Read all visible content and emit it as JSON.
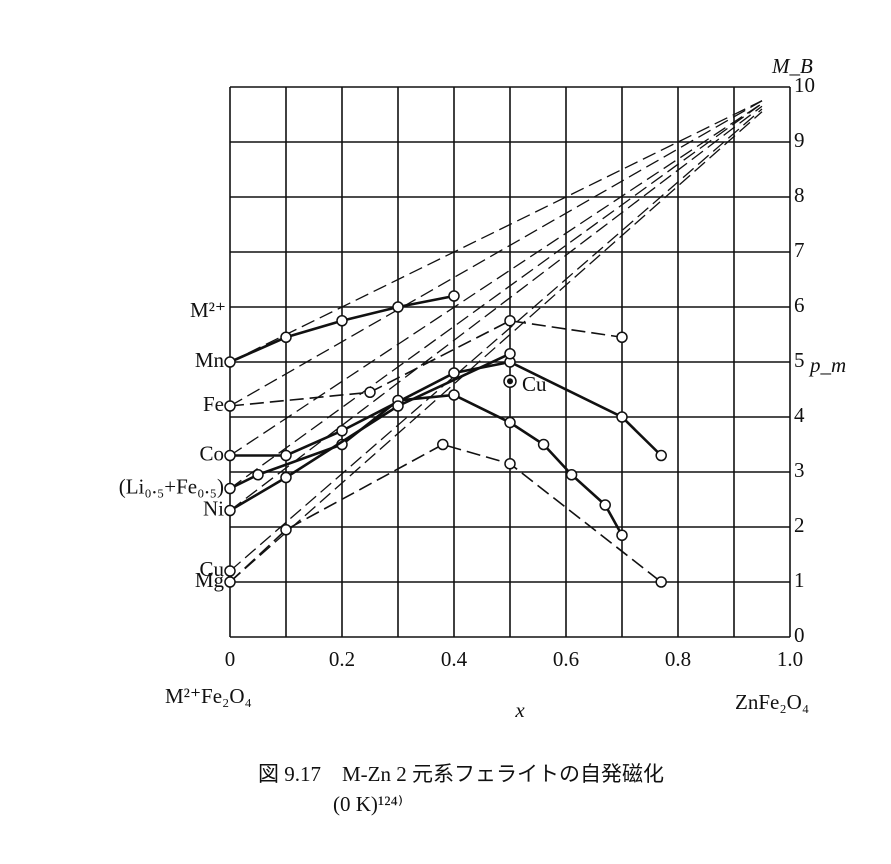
{
  "chart_data": {
    "type": "line",
    "axis_top_label": "M_B",
    "axis_right_label": "p_m",
    "xlabel": "x",
    "x_left_label": "M²⁺Fe₂O₄",
    "x_right_label": "ZnFe₂O₄",
    "series_header": "M²⁺",
    "caption": [
      "図 9.17　M-Zn 2 元系フェライトの自発磁化",
      "(0 K)¹²⁴⁾"
    ],
    "xlim": [
      0,
      1
    ],
    "ylim": [
      0,
      10
    ],
    "xticks": [
      0,
      0.2,
      0.4,
      0.6,
      0.8,
      {
        "value": 1,
        "label": "1.0"
      }
    ],
    "xgrid": [
      0,
      0.1,
      0.2,
      0.3,
      0.4,
      0.5,
      0.6,
      0.7,
      0.8,
      0.9,
      1
    ],
    "yticks": [
      0,
      1,
      2,
      3,
      4,
      5,
      6,
      7,
      8,
      9,
      10
    ],
    "grid": true,
    "color": "#111111",
    "series": [
      {
        "name": "Mn",
        "line": "solid",
        "x": [
          0,
          0.1,
          0.2,
          0.3,
          0.4
        ],
        "values": [
          5.0,
          5.45,
          5.75,
          6.0,
          6.2
        ]
      },
      {
        "name": "Fe",
        "line": "dashed",
        "x": [
          0,
          0.25,
          0.5,
          0.7
        ],
        "values": [
          4.2,
          4.45,
          5.75,
          5.45
        ]
      },
      {
        "name": "Co",
        "line": "solid",
        "x": [
          0,
          0.1,
          0.2,
          0.4,
          0.5,
          0.7,
          0.77
        ],
        "values": [
          3.3,
          3.3,
          3.75,
          4.8,
          5.0,
          4.0,
          3.3
        ]
      },
      {
        "name": "(Li₀.₅+Fe₀.₅)",
        "line": "solid",
        "x": [
          0,
          0.05,
          0.2,
          0.3,
          0.4,
          0.5,
          0.56,
          0.61,
          0.67,
          0.7
        ],
        "values": [
          2.7,
          2.95,
          3.5,
          4.3,
          4.4,
          3.9,
          3.5,
          2.95,
          2.4,
          1.85
        ]
      },
      {
        "name": "Ni",
        "line": "solid",
        "x": [
          0,
          0.1,
          0.3,
          0.5
        ],
        "values": [
          2.3,
          2.9,
          4.2,
          5.15
        ]
      },
      {
        "name": "Cu",
        "line": "dashed",
        "x": [
          0
        ],
        "values": [
          1.2
        ]
      },
      {
        "name": "Mg",
        "line": "dashed",
        "x": [
          0,
          0.1,
          0.38,
          0.5,
          0.77
        ],
        "values": [
          1.0,
          1.95,
          3.5,
          3.15,
          1.0
        ]
      }
    ],
    "theory_lines": [
      {
        "x": [
          0,
          0.95
        ],
        "values": [
          5.0,
          9.75
        ]
      },
      {
        "x": [
          0,
          0.95
        ],
        "values": [
          4.2,
          9.75
        ]
      },
      {
        "x": [
          0,
          0.95
        ],
        "values": [
          3.3,
          9.7
        ]
      },
      {
        "x": [
          0,
          0.95
        ],
        "values": [
          2.7,
          9.7
        ]
      },
      {
        "x": [
          0,
          0.95
        ],
        "values": [
          2.3,
          9.65
        ]
      },
      {
        "x": [
          0,
          0.95
        ],
        "values": [
          1.2,
          9.6
        ]
      },
      {
        "x": [
          0,
          0.95
        ],
        "values": [
          1.0,
          9.55
        ]
      }
    ],
    "highlight": {
      "x": 0.5,
      "value": 4.65,
      "label": "Cu"
    }
  }
}
